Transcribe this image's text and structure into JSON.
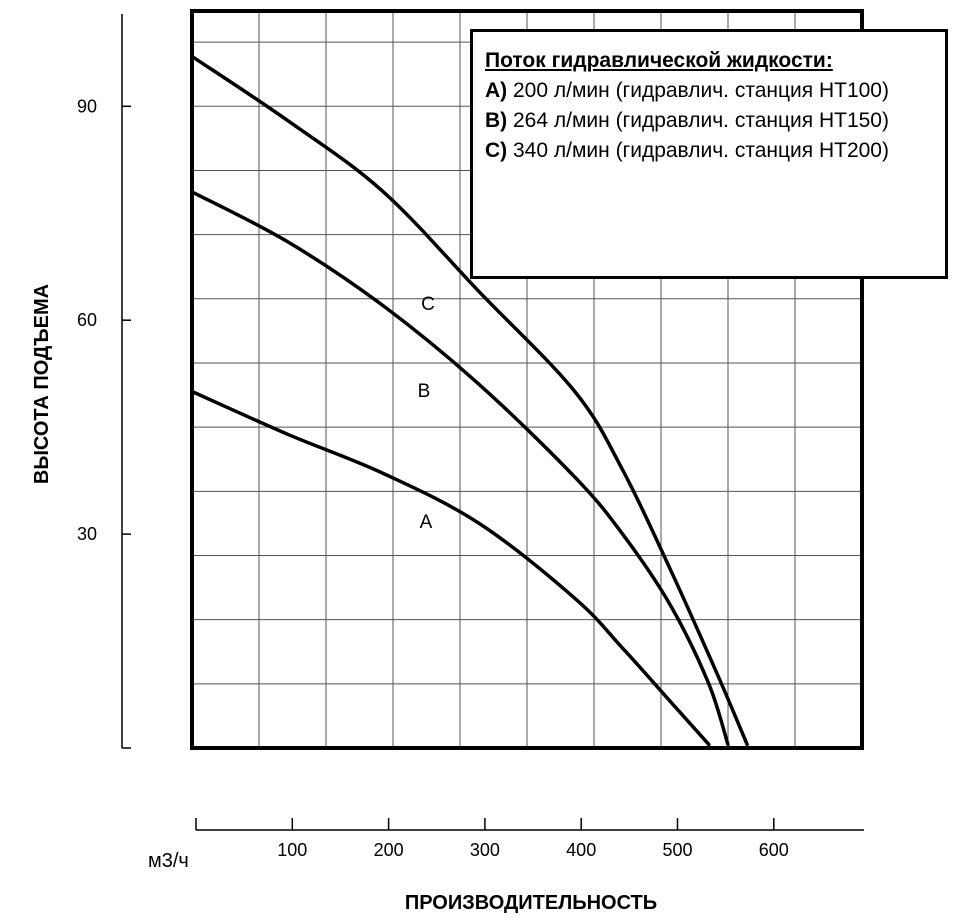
{
  "chart_data": {
    "type": "line",
    "xlabel": "ПРОИЗВОДИТЕЛЬНОСТЬ",
    "ylabel": "ВЫСОТА ПОДЪЕМА",
    "x_unit": "м3/ч",
    "xlim": [
      0,
      700
    ],
    "ylim": [
      0,
      102
    ],
    "x_ticks": [
      0,
      100,
      200,
      300,
      400,
      500,
      600
    ],
    "x_tick_labels": [
      "100",
      "200",
      "300",
      "400",
      "500",
      "600"
    ],
    "y_ticks": [
      30,
      60,
      90
    ],
    "y_tick_labels": [
      "30",
      "60",
      "90"
    ],
    "grid": true,
    "series": [
      {
        "name": "A",
        "x": [
          0,
          100,
          200,
          300,
          400,
          450,
          500,
          540
        ],
        "y": [
          50,
          44,
          38.5,
          31.5,
          21,
          14,
          6.5,
          0.5
        ]
      },
      {
        "name": "B",
        "x": [
          0,
          100,
          200,
          300,
          400,
          450,
          500,
          540,
          560
        ],
        "y": [
          78,
          71,
          62,
          51,
          38,
          30,
          20,
          9,
          0.5
        ]
      },
      {
        "name": "C",
        "x": [
          0,
          100,
          200,
          300,
          400,
          450,
          500,
          550,
          580
        ],
        "y": [
          97,
          88,
          78,
          64,
          50,
          39,
          25,
          10,
          0.5
        ]
      }
    ],
    "legend": {
      "position": "top-right",
      "title": "Поток гидравлической жидкости:",
      "entries": [
        {
          "letter": "А)",
          "text": " 200 л/мин (гидравлич. станция HT100)"
        },
        {
          "letter": "B)",
          "text": " 264 л/мин (гидравлич. станция HT150)"
        },
        {
          "letter": "C)",
          "text": " 340 л/мин (гидравлич. станция HT200)"
        }
      ]
    }
  }
}
